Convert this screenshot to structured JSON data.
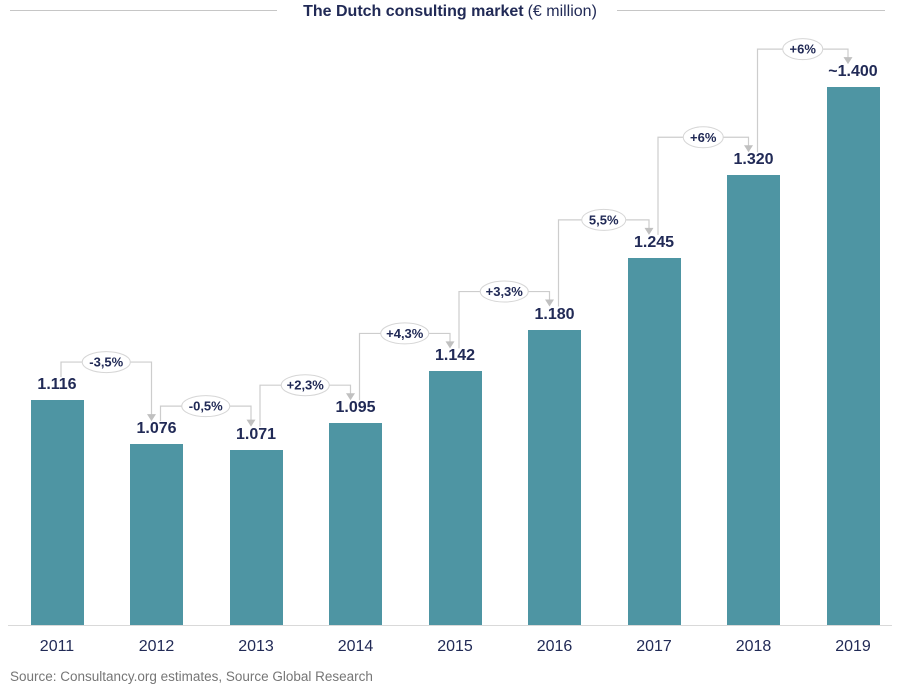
{
  "title": {
    "bold": "The Dutch consulting market",
    "suffix": "(€ million)"
  },
  "source": "Source: Consultancy.org estimates, Source Global Research",
  "colors": {
    "bar": "#4e95a3",
    "text_navy": "#212a56",
    "connector_line": "#cdcdcd",
    "arrowhead": "#c0c0c0",
    "oval_border": "#d6d6d6",
    "oval_fill": "#ffffff",
    "axis_line": "#d9d9d9",
    "source_text": "#767676"
  },
  "chart_data": {
    "type": "bar",
    "title": "The Dutch consulting market (€ million)",
    "xlabel": "",
    "ylabel": "",
    "categories": [
      "2011",
      "2012",
      "2013",
      "2014",
      "2015",
      "2016",
      "2017",
      "2018",
      "2019"
    ],
    "values": [
      1116,
      1076,
      1071,
      1095,
      1142,
      1180,
      1245,
      1320,
      1400
    ],
    "value_labels": [
      "1.116",
      "1.076",
      "1.071",
      "1.095",
      "1.142",
      "1.180",
      "1.245",
      "1.320",
      "~1.400"
    ],
    "pct_changes": [
      "-3,5%",
      "-0,5%",
      "+2,3%",
      "+4,3%",
      "+3,3%",
      "5,5%",
      "+6%",
      "+6%"
    ],
    "last_value_approximate": true,
    "grid": false,
    "legend": false,
    "y_axis_shown": false,
    "ylim_note": "y-axis truncated (bars not zero-based)"
  }
}
